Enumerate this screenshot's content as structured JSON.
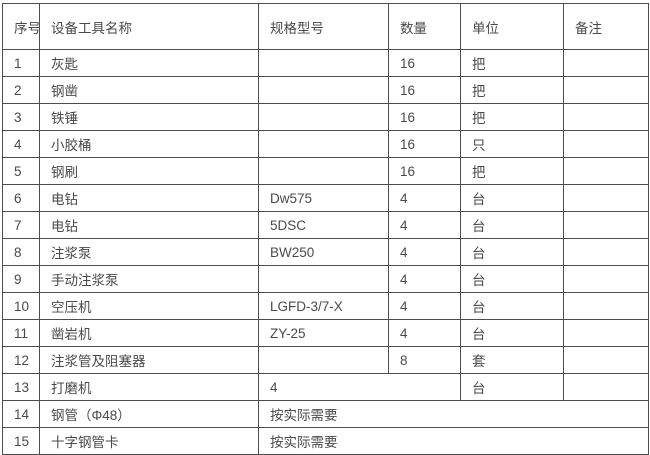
{
  "colors": {
    "border": "#4d4d4d",
    "text": "#4a4a4a",
    "background": "#ffffff"
  },
  "table": {
    "headers": [
      "序号",
      "设备工具名称",
      "规格型号",
      "数量",
      "单位",
      "备注"
    ],
    "rows": [
      {
        "cells": [
          {
            "text": "1"
          },
          {
            "text": "灰匙"
          },
          {
            "text": ""
          },
          {
            "text": "16"
          },
          {
            "text": "把"
          },
          {
            "text": ""
          }
        ]
      },
      {
        "cells": [
          {
            "text": "2"
          },
          {
            "text": "钢凿"
          },
          {
            "text": ""
          },
          {
            "text": "16"
          },
          {
            "text": "把"
          },
          {
            "text": ""
          }
        ]
      },
      {
        "cells": [
          {
            "text": "3"
          },
          {
            "text": "铁锤"
          },
          {
            "text": ""
          },
          {
            "text": "16"
          },
          {
            "text": "把"
          },
          {
            "text": ""
          }
        ]
      },
      {
        "cells": [
          {
            "text": "4"
          },
          {
            "text": "小胶桶"
          },
          {
            "text": ""
          },
          {
            "text": "16"
          },
          {
            "text": "只"
          },
          {
            "text": ""
          }
        ]
      },
      {
        "cells": [
          {
            "text": "5"
          },
          {
            "text": "钢刷"
          },
          {
            "text": ""
          },
          {
            "text": "16"
          },
          {
            "text": "把"
          },
          {
            "text": ""
          }
        ]
      },
      {
        "cells": [
          {
            "text": "6"
          },
          {
            "text": "电钻"
          },
          {
            "text": "Dw575"
          },
          {
            "text": "4"
          },
          {
            "text": "台"
          },
          {
            "text": ""
          }
        ]
      },
      {
        "cells": [
          {
            "text": "7"
          },
          {
            "text": "电钻"
          },
          {
            "text": "5DSC"
          },
          {
            "text": "4"
          },
          {
            "text": "台"
          },
          {
            "text": ""
          }
        ]
      },
      {
        "cells": [
          {
            "text": "8"
          },
          {
            "text": "注浆泵"
          },
          {
            "text": "BW250"
          },
          {
            "text": "4"
          },
          {
            "text": "台"
          },
          {
            "text": ""
          }
        ]
      },
      {
        "cells": [
          {
            "text": "9"
          },
          {
            "text": "手动注浆泵"
          },
          {
            "text": ""
          },
          {
            "text": "4"
          },
          {
            "text": "台"
          },
          {
            "text": ""
          }
        ]
      },
      {
        "cells": [
          {
            "text": "10"
          },
          {
            "text": "空压机"
          },
          {
            "text": "LGFD-3/7-X"
          },
          {
            "text": "4"
          },
          {
            "text": "台"
          },
          {
            "text": ""
          }
        ]
      },
      {
        "cells": [
          {
            "text": "11"
          },
          {
            "text": "凿岩机"
          },
          {
            "text": "ZY-25"
          },
          {
            "text": "4"
          },
          {
            "text": "台"
          },
          {
            "text": ""
          }
        ]
      },
      {
        "cells": [
          {
            "text": "12"
          },
          {
            "text": "注浆管及阻塞器"
          },
          {
            "text": ""
          },
          {
            "text": "8"
          },
          {
            "text": "套"
          },
          {
            "text": ""
          }
        ]
      },
      {
        "cells": [
          {
            "text": "13"
          },
          {
            "text": "打磨机"
          },
          {
            "text": "4",
            "colspan": 2
          },
          {
            "text": "台"
          },
          {
            "text": ""
          }
        ]
      },
      {
        "cells": [
          {
            "text": "14"
          },
          {
            "text": "钢管（Φ48）"
          },
          {
            "text": "按实际需要",
            "colspan": 4
          }
        ]
      },
      {
        "cells": [
          {
            "text": "15"
          },
          {
            "text": "十字钢管卡"
          },
          {
            "text": "按实际需要",
            "colspan": 4
          }
        ]
      }
    ]
  }
}
